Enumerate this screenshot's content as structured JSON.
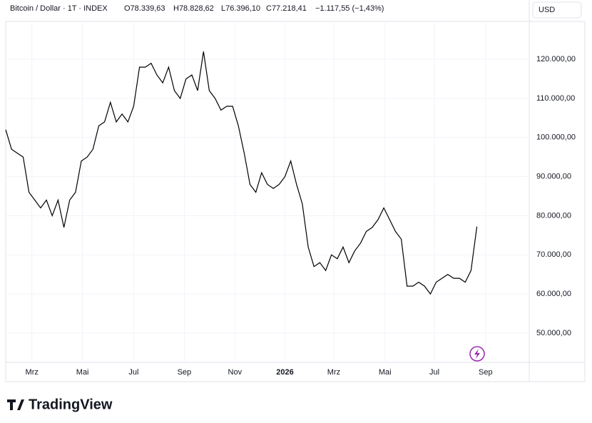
{
  "header": {
    "symbol": "Bitcoin / Dollar · 1T · INDEX",
    "ohlc": [
      "O78.339,63",
      "H78.828,62",
      "L76.396,10",
      "C77.218,41"
    ],
    "change": "−1.117,55 (−1,43%)",
    "currency": "USD"
  },
  "brand": "TradingView",
  "chart_data": {
    "type": "line",
    "color": "#000000",
    "grid": true,
    "x": [
      0,
      1,
      2,
      3,
      4,
      5,
      6,
      7,
      8,
      9,
      10,
      11,
      12,
      13,
      14,
      15,
      16,
      17,
      18,
      19,
      20,
      21,
      22,
      23,
      24,
      25,
      26,
      27,
      28,
      29,
      30,
      31,
      32,
      33,
      34,
      35,
      36,
      37,
      38,
      39,
      40,
      41,
      42,
      43,
      44,
      45,
      46,
      47,
      48,
      49,
      50,
      51,
      52,
      53,
      54,
      55,
      56,
      57,
      58,
      59,
      60,
      61,
      62,
      63,
      64,
      65,
      66,
      67,
      68,
      69,
      70,
      71,
      72,
      73,
      74,
      75,
      76,
      77,
      78,
      79,
      80,
      81
    ],
    "values": [
      102000,
      97000,
      96000,
      95000,
      86000,
      84000,
      82000,
      84000,
      80000,
      84000,
      77000,
      84000,
      86000,
      94000,
      95000,
      97000,
      103000,
      104000,
      109000,
      104000,
      106000,
      104000,
      108000,
      118000,
      118000,
      119000,
      116000,
      114000,
      118000,
      112000,
      110000,
      115000,
      116000,
      112000,
      122000,
      112000,
      110000,
      107000,
      108000,
      108000,
      103000,
      96000,
      88000,
      86000,
      91000,
      88000,
      87000,
      88000,
      90000,
      94000,
      88000,
      83000,
      72000,
      67000,
      68000,
      66000,
      70000,
      69000,
      72000,
      68000,
      71000,
      73000,
      76000,
      77000,
      79000,
      82000,
      79000,
      76000,
      74000,
      62000,
      62000,
      63000,
      62000,
      60000,
      63000,
      64000,
      65000,
      64000,
      64000,
      63000,
      66000,
      77218.41
    ],
    "xlim": [
      0,
      90
    ],
    "xticks": [
      {
        "value": 4.5,
        "label": "Mrz"
      },
      {
        "value": 13.2,
        "label": "Mai"
      },
      {
        "value": 22,
        "label": "Jul"
      },
      {
        "value": 30.7,
        "label": "Sep"
      },
      {
        "value": 39.4,
        "label": "Nov"
      },
      {
        "value": 48,
        "label": "2026"
      },
      {
        "value": 56.4,
        "label": "Mrz"
      },
      {
        "value": 65.2,
        "label": "Mai"
      },
      {
        "value": 73.7,
        "label": "Jul"
      },
      {
        "value": 82.5,
        "label": "Sep"
      }
    ],
    "ylim": [
      42500,
      129700
    ],
    "yticks": [
      {
        "value": 50000,
        "label": "50.000,00"
      },
      {
        "value": 60000,
        "label": "60.000,00"
      },
      {
        "value": 70000,
        "label": "70.000,00"
      },
      {
        "value": 80000,
        "label": "80.000,00"
      },
      {
        "value": 90000,
        "label": "90.000,00"
      },
      {
        "value": 100000,
        "label": "100.000,00"
      },
      {
        "value": 110000,
        "label": "110.000,00"
      },
      {
        "value": 120000,
        "label": "120.000,00"
      }
    ]
  }
}
